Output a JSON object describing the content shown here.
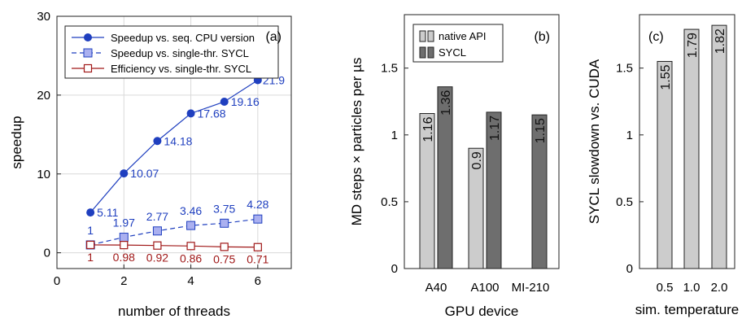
{
  "chart_data": [
    {
      "type": "line",
      "panel_tag": "(a)",
      "xlabel": "number of threads",
      "ylabel": "speedup",
      "xlim": [
        0,
        7
      ],
      "ylim": [
        -2,
        30
      ],
      "xticks": [
        0,
        2,
        4,
        6
      ],
      "yticks": [
        0,
        10,
        20,
        30
      ],
      "grid": true,
      "legend_position": "top",
      "x": [
        1,
        2,
        3,
        4,
        5,
        6
      ],
      "series": [
        {
          "name": "Speedup vs. seq. CPU version",
          "values": [
            5.11,
            10.07,
            14.18,
            17.68,
            19.16,
            21.9
          ],
          "labels": [
            "5.11",
            "10.07",
            "14.18",
            "17.68",
            "19.16",
            "21.9"
          ],
          "color": "#1f3fbf",
          "marker": "circle",
          "line": "solid"
        },
        {
          "name": "Speedup vs. single-thr. SYCL",
          "values": [
            1,
            1.97,
            2.77,
            3.46,
            3.75,
            4.28
          ],
          "labels": [
            "1",
            "1.97",
            "2.77",
            "3.46",
            "3.75",
            "4.28"
          ],
          "color": "#1f3fbf",
          "fill": "#aab0f0",
          "marker": "square",
          "line": "dashed"
        },
        {
          "name": "Efficiency vs. single-thr. SYCL",
          "values": [
            1,
            0.98,
            0.92,
            0.86,
            0.75,
            0.71
          ],
          "labels": [
            "1",
            "0.98",
            "0.92",
            "0.86",
            "0.75",
            "0.71"
          ],
          "color": "#a01818",
          "marker": "open-square",
          "line": "solid"
        }
      ]
    },
    {
      "type": "bar",
      "panel_tag": "(b)",
      "xlabel": "GPU device",
      "ylabel": "MD steps × particles per µs",
      "ylim": [
        0,
        1.9
      ],
      "yticks": [
        "0",
        "0.5",
        "1",
        "1.5"
      ],
      "legend_position": "top-left",
      "categories": [
        "A40",
        "A100",
        "MI-210"
      ],
      "series": [
        {
          "name": "native API",
          "values": [
            1.16,
            0.9,
            null
          ],
          "labels": [
            "1.16",
            "0.9",
            ""
          ],
          "color": "#cccccc"
        },
        {
          "name": "SYCL",
          "values": [
            1.36,
            1.17,
            1.15
          ],
          "labels": [
            "1.36",
            "1.17",
            "1.15"
          ],
          "color": "#6e6e6e"
        }
      ]
    },
    {
      "type": "bar",
      "panel_tag": "(c)",
      "xlabel": "sim. temperature",
      "ylabel": "SYCL slowdown vs. CUDA",
      "ylim": [
        0,
        1.9
      ],
      "yticks": [
        "0",
        "0.5",
        "1",
        "1.5"
      ],
      "categories": [
        "0.5",
        "1.0",
        "2.0"
      ],
      "values": [
        1.55,
        1.79,
        1.82
      ],
      "labels": [
        "1.55",
        "1.79",
        "1.82"
      ],
      "color": "#cccccc"
    }
  ]
}
